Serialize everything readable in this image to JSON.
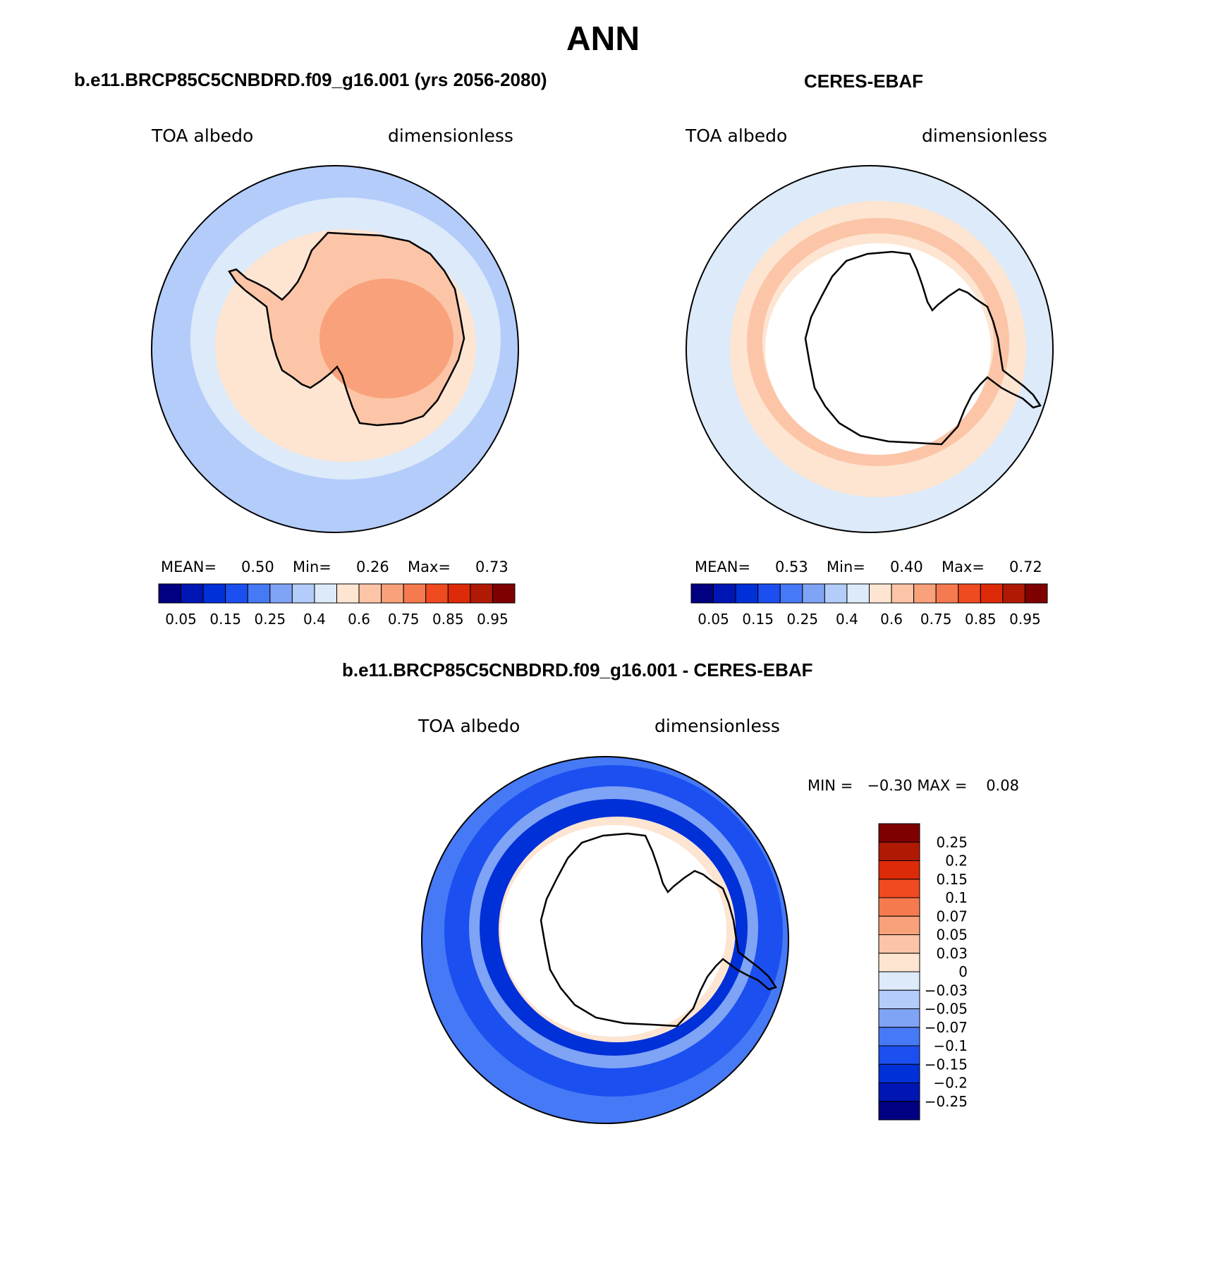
{
  "title": "ANN",
  "panels": [
    {
      "id": "model",
      "title": "b.e11.BRCP85C5CNBDRD.f09_g16.001 (yrs 2056-2080)",
      "left_label": "TOA albedo",
      "right_label": "dimensionless",
      "mean_label": "MEAN=",
      "mean_value": "0.50",
      "min_label": "Min=",
      "min_value": "0.26",
      "max_label": "Max=",
      "max_value": "0.73"
    },
    {
      "id": "obs",
      "title": "CERES-EBAF",
      "left_label": "TOA albedo",
      "right_label": "dimensionless",
      "mean_label": "MEAN=",
      "mean_value": "0.53",
      "min_label": "Min=",
      "min_value": "0.40",
      "max_label": "Max=",
      "max_value": "0.72"
    }
  ],
  "difference_panel": {
    "title": "b.e11.BRCP85C5CNBDRD.f09_g16.001 - CERES-EBAF",
    "left_label": "TOA albedo",
    "right_label": "dimensionless",
    "minmax_text": "MIN =   −0.30 MAX =    0.08"
  },
  "abs_colorbar": {
    "colors": [
      "#000080",
      "#0016b4",
      "#0030d8",
      "#1c4ff0",
      "#4679f5",
      "#7fa3f5",
      "#b3ccfa",
      "#dceaf9",
      "#fde5d2",
      "#fcc5a8",
      "#f9a17a",
      "#f57a4f",
      "#f04a20",
      "#dd2a08",
      "#b01a04",
      "#7f0000"
    ],
    "tick_labels": [
      "0.05",
      "0.15",
      "0.25",
      "0.4",
      "0.6",
      "0.75",
      "0.85",
      "0.95"
    ]
  },
  "diff_colorbar": {
    "colors": [
      "#000080",
      "#0016b4",
      "#0030d8",
      "#1c4ff0",
      "#4679f5",
      "#7fa3f5",
      "#b3ccfa",
      "#dceaf9",
      "#fde5d2",
      "#fcc5a8",
      "#f9a17a",
      "#f57a4f",
      "#f04a20",
      "#dd2a08",
      "#b01a04",
      "#7f0000"
    ],
    "tick_labels": [
      "0.25",
      "0.2",
      "0.15",
      "0.1",
      "0.07",
      "0.05",
      "0.03",
      "0",
      "−0.03",
      "−0.05",
      "−0.07",
      "−0.1",
      "−0.15",
      "−0.2",
      "−0.25"
    ]
  },
  "map_fill_colors": {
    "ocean_model": "#b3ccfa",
    "ocean_model_light": "#dceaf9",
    "seaice_model": "#fde5d2",
    "ice_model": "#fcc5a8",
    "plateau_model": "#f9a17a",
    "ocean_obs": "#dceaf9",
    "ring_obs": "#fde5d2",
    "ring_obs_dark": "#fcc5a8",
    "diff_outer": "#4679f5",
    "diff_mid": "#1c4ff0",
    "diff_inner_light": "#7fa3f5",
    "diff_dark": "#0030d8",
    "diff_positive": "#fde5d2"
  }
}
